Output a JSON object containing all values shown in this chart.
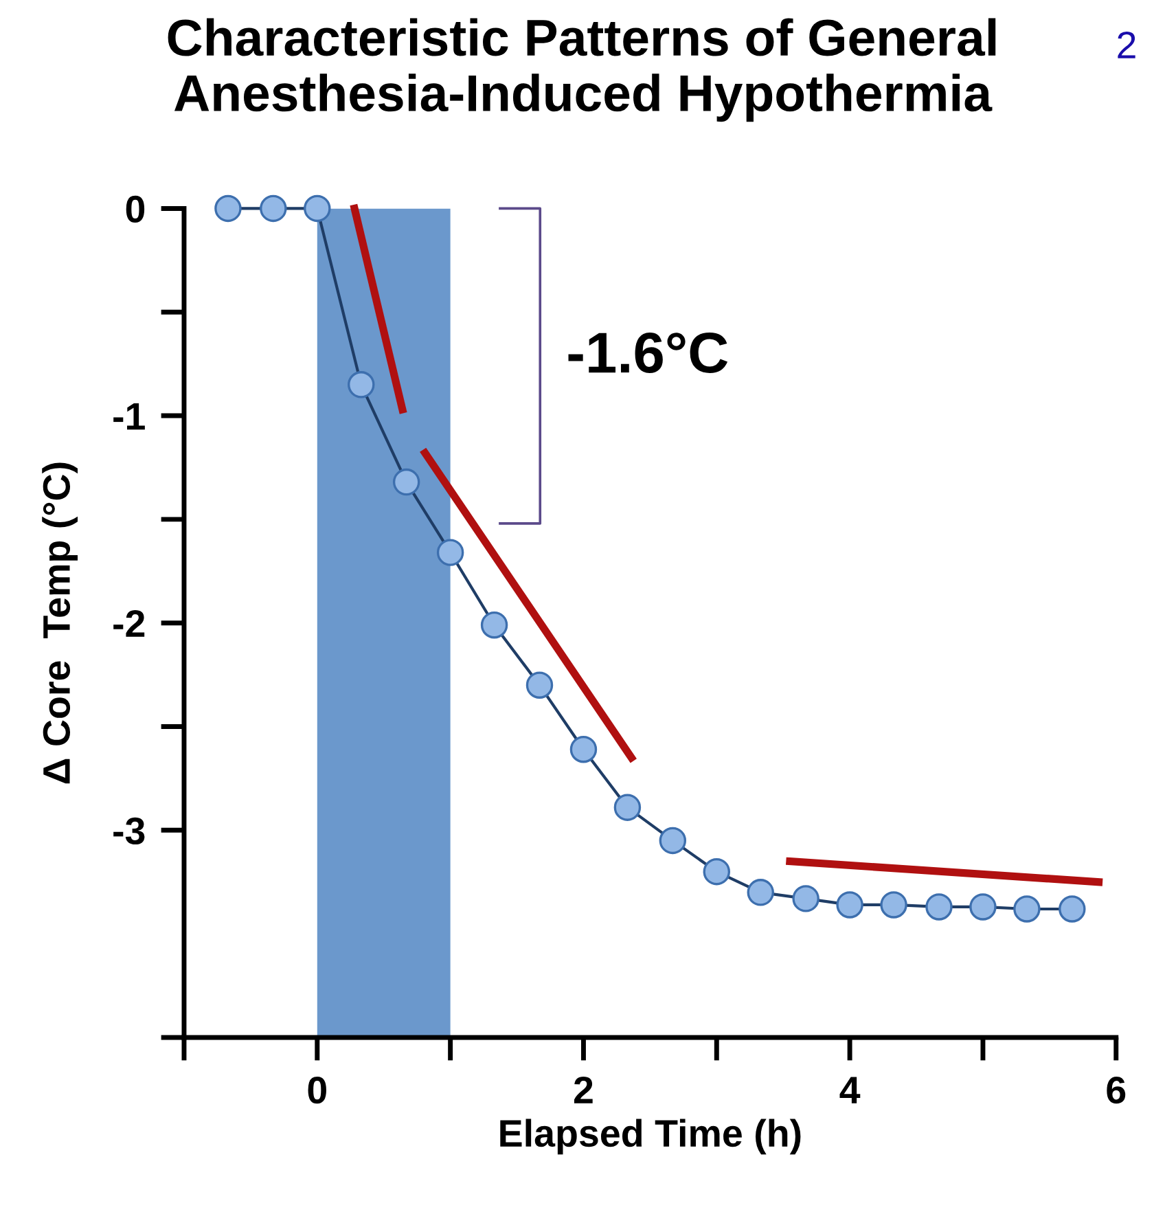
{
  "chart_data": {
    "type": "line",
    "title": "Characteristic Patterns of General Anesthesia-Induced Hypothermia",
    "xlabel": "Elapsed Time (h)",
    "ylabel": "Δ Core  Temp (°C)",
    "xlim": [
      -1,
      6
    ],
    "xticks": [
      {
        "value": -1,
        "label": null
      },
      0,
      2,
      4,
      6
    ],
    "ylim": [
      -4,
      0
    ],
    "yticks": [
      {
        "value": -4,
        "label": null
      },
      -3,
      -2,
      -1,
      0
    ],
    "grid": false,
    "legend": false,
    "marker": "circle",
    "line_style": "solid",
    "bands": [
      {
        "axis": "x",
        "from": 0,
        "to": 1,
        "color": "#6b98cc"
      }
    ],
    "annotations": [
      "2",
      "-1.6°C"
    ],
    "series": [
      {
        "color": "#1f3d66",
        "x": [
          -0.67,
          -0.33,
          0,
          0.33,
          0.67,
          1,
          1.33,
          1.67,
          2,
          2.33,
          2.67,
          3,
          3.33,
          3.67,
          4,
          4.33,
          4.67,
          5,
          5.33,
          5.67
        ],
        "values": [
          0,
          0,
          0,
          -0.85,
          -1.32,
          -1.66,
          -2.01,
          -2.3,
          -2.61,
          -2.89,
          -3.05,
          -3.2,
          -3.3,
          -3.33,
          -3.36,
          -3.36,
          -3.37,
          -3.37,
          -3.38,
          -3.38
        ]
      },
      {
        "type": "line",
        "marker": "none",
        "color": "#b01010",
        "x": [
          0.28,
          0.64
        ],
        "values": [
          0,
          -0.97
        ]
      },
      {
        "type": "line",
        "marker": "none",
        "color": "#b01010",
        "x": [
          0.81,
          2.36
        ],
        "values": [
          -1.18,
          -2.65
        ]
      },
      {
        "type": "line",
        "marker": "none",
        "color": "#b01010",
        "x": [
          3.55,
          5.87
        ],
        "values": [
          -3.15,
          -3.25
        ]
      }
    ]
  }
}
